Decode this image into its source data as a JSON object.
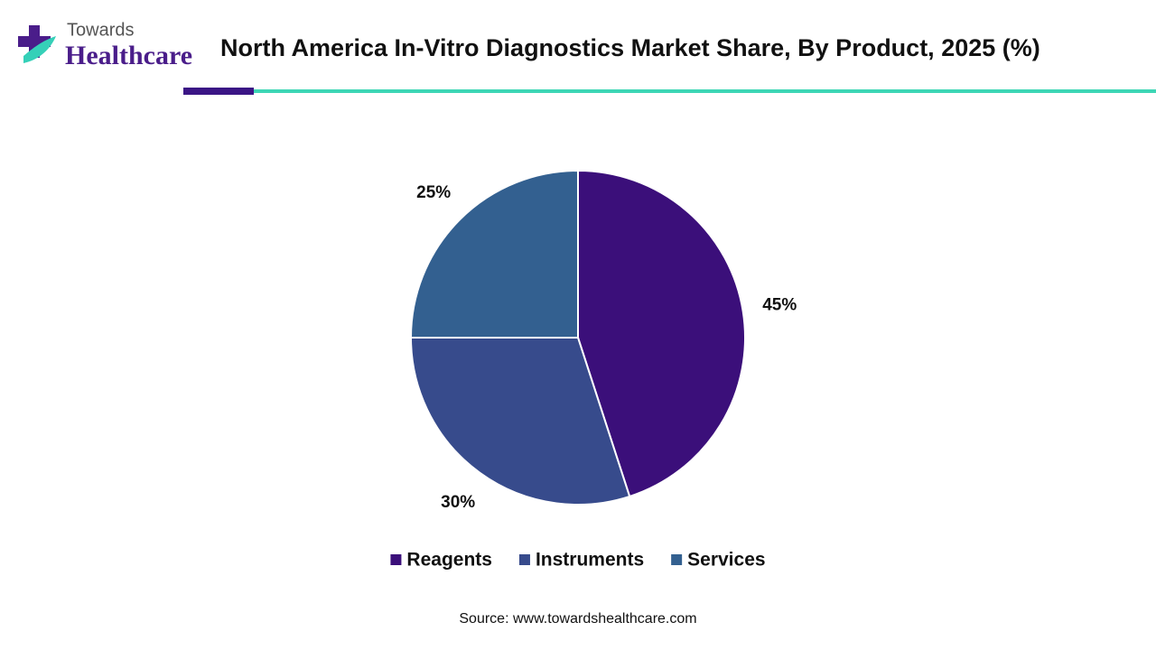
{
  "logo": {
    "top": "Towards",
    "bottom": "Healthcare"
  },
  "chart_data": {
    "type": "pie",
    "title": "North America In-Vitro Diagnostics Market Share, By Product, 2025 (%)",
    "categories": [
      "Reagents",
      "Instruments",
      "Services"
    ],
    "values": [
      45,
      30,
      25
    ],
    "value_labels": [
      "45%",
      "30%",
      "25%"
    ],
    "colors": [
      "#3b0f7a",
      "#374b8c",
      "#336090"
    ],
    "legend": "bottom"
  },
  "source": "Source: www.towardshealthcare.com"
}
